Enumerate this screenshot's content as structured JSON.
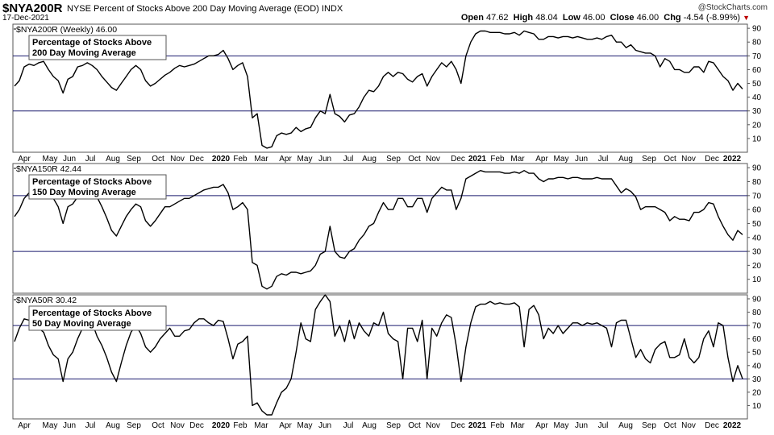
{
  "header": {
    "symbol": "$NYA200R",
    "description": "NYSE Percent of Stocks Above 200 Day Moving Average (EOD)  INDX",
    "date": "17-Dec-2021",
    "logo": "@StockCharts.com",
    "open_label": "Open",
    "open": "47.62",
    "high_label": "High",
    "high": "48.04",
    "low_label": "Low",
    "low": "46.00",
    "close_label": "Close",
    "close": "46.00",
    "chg_label": "Chg",
    "chg": "-4.54 (-8.99%)"
  },
  "x_labels": [
    "Apr",
    "May",
    "Jun",
    "Jul",
    "Aug",
    "Sep",
    "Oct",
    "Nov",
    "Dec",
    "2020",
    "Feb",
    "Mar",
    "Apr",
    "May",
    "Jun",
    "Jul",
    "Aug",
    "Sep",
    "Oct",
    "Nov",
    "Dec",
    "2021",
    "Feb",
    "Mar",
    "Apr",
    "May",
    "Jun",
    "Jul",
    "Aug",
    "Sep",
    "Oct",
    "Nov",
    "Dec",
    "2022"
  ],
  "bold_x_labels": [
    "2020",
    "2021",
    "2022"
  ],
  "chart_data": [
    {
      "type": "line",
      "legend": "$NYA200R (Weekly) 46.00",
      "annotation": [
        "Percentage of Stocks Above",
        "200 Day Moving Average"
      ],
      "ylim": [
        0,
        93
      ],
      "y_ticks": [
        10,
        20,
        30,
        40,
        50,
        60,
        70,
        80,
        90
      ],
      "hlines": [
        30,
        70
      ],
      "values": [
        48,
        52,
        62,
        64,
        63,
        65,
        66,
        60,
        55,
        52,
        43,
        53,
        55,
        62,
        63,
        65,
        63,
        60,
        55,
        51,
        47,
        45,
        50,
        55,
        60,
        63,
        60,
        52,
        48,
        50,
        53,
        56,
        58,
        61,
        63,
        62,
        63,
        64,
        66,
        68,
        70,
        70,
        71,
        74,
        68,
        60,
        63,
        65,
        55,
        25,
        28,
        5,
        3,
        4,
        12,
        14,
        13,
        14,
        18,
        15,
        17,
        18,
        25,
        30,
        28,
        42,
        28,
        26,
        22,
        27,
        28,
        33,
        40,
        45,
        44,
        48,
        55,
        58,
        55,
        58,
        57,
        53,
        51,
        55,
        57,
        48,
        55,
        60,
        65,
        62,
        66,
        60,
        50,
        70,
        80,
        86,
        88,
        88,
        87,
        87,
        87,
        86,
        86,
        87,
        85,
        88,
        87,
        86,
        82,
        82,
        84,
        84,
        83,
        84,
        84,
        83,
        84,
        83,
        82,
        82,
        83,
        82,
        84,
        85,
        80,
        80,
        76,
        78,
        74,
        73,
        72,
        72,
        70,
        62,
        68,
        66,
        60,
        60,
        58,
        58,
        62,
        62,
        58,
        66,
        65,
        60,
        55,
        52,
        45,
        50,
        46
      ]
    },
    {
      "type": "line",
      "legend": "$NYA150R 42.44",
      "annotation": [
        "Percentage of Stocks Above",
        "150 Day Moving Average"
      ],
      "ylim": [
        0,
        93
      ],
      "y_ticks": [
        10,
        20,
        30,
        40,
        50,
        60,
        70,
        80,
        90
      ],
      "hlines": [
        30,
        70
      ],
      "values": [
        55,
        60,
        68,
        72,
        72,
        72,
        72,
        70,
        68,
        62,
        50,
        62,
        64,
        69,
        72,
        74,
        72,
        69,
        62,
        54,
        45,
        41,
        48,
        55,
        60,
        64,
        62,
        52,
        48,
        52,
        57,
        62,
        62,
        64,
        66,
        68,
        68,
        70,
        72,
        74,
        75,
        76,
        76,
        78,
        72,
        60,
        62,
        65,
        60,
        22,
        20,
        5,
        3,
        5,
        12,
        14,
        13,
        15,
        15,
        14,
        15,
        16,
        20,
        28,
        30,
        48,
        30,
        26,
        25,
        30,
        32,
        38,
        42,
        48,
        50,
        58,
        65,
        60,
        60,
        68,
        68,
        62,
        62,
        68,
        68,
        58,
        68,
        72,
        76,
        74,
        74,
        60,
        68,
        82,
        84,
        86,
        88,
        87,
        87,
        87,
        87,
        86,
        86,
        87,
        86,
        88,
        86,
        86,
        82,
        80,
        82,
        82,
        83,
        83,
        82,
        83,
        83,
        82,
        82,
        82,
        83,
        82,
        82,
        82,
        77,
        72,
        75,
        73,
        69,
        60,
        62,
        62,
        62,
        60,
        58,
        52,
        55,
        53,
        53,
        52,
        58,
        58,
        60,
        65,
        64,
        55,
        48,
        42,
        38,
        45,
        42
      ]
    },
    {
      "type": "line",
      "legend": "$NYA50R 30.42",
      "annotation": [
        "Percentage of Stocks Above",
        "50 Day Moving Average"
      ],
      "ylim": [
        0,
        93
      ],
      "y_ticks": [
        10,
        20,
        30,
        40,
        50,
        60,
        70,
        80,
        90
      ],
      "hlines": [
        30,
        70
      ],
      "values": [
        58,
        68,
        75,
        74,
        76,
        68,
        65,
        55,
        48,
        45,
        28,
        45,
        50,
        60,
        68,
        70,
        72,
        62,
        55,
        46,
        35,
        28,
        42,
        55,
        65,
        70,
        64,
        54,
        50,
        54,
        60,
        64,
        68,
        62,
        62,
        66,
        67,
        72,
        75,
        75,
        72,
        70,
        74,
        73,
        60,
        45,
        56,
        58,
        62,
        10,
        12,
        6,
        3,
        3,
        12,
        20,
        23,
        30,
        50,
        72,
        60,
        58,
        82,
        88,
        93,
        88,
        62,
        70,
        58,
        74,
        60,
        72,
        66,
        62,
        72,
        70,
        80,
        64,
        60,
        58,
        30,
        68,
        68,
        58,
        74,
        30,
        68,
        62,
        72,
        78,
        76,
        55,
        28,
        54,
        72,
        84,
        86,
        86,
        88,
        86,
        87,
        86,
        86,
        87,
        84,
        54,
        82,
        85,
        78,
        60,
        68,
        64,
        70,
        64,
        68,
        72,
        72,
        70,
        72,
        71,
        72,
        70,
        68,
        54,
        72,
        74,
        74,
        60,
        46,
        52,
        45,
        42,
        52,
        56,
        58,
        46,
        46,
        48,
        60,
        46,
        42,
        46,
        60,
        66,
        54,
        72,
        70,
        46,
        28,
        40,
        30
      ]
    }
  ]
}
